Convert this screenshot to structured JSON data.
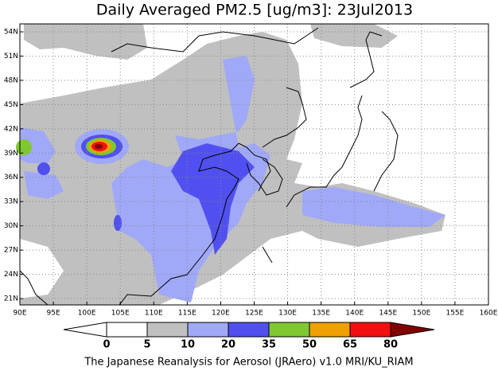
{
  "title": "Daily Averaged PM2.5 [ug/m3]: 23Jul2013",
  "lat_labels": [
    "54N",
    "51N",
    "48N",
    "45N",
    "42N",
    "39N",
    "36N",
    "33N",
    "30N",
    "27N",
    "24N",
    "21N"
  ],
  "lon_labels": [
    "90E",
    "95E",
    "100E",
    "105E",
    "110E",
    "115E",
    "120E",
    "125E",
    "130E",
    "135E",
    "140E",
    "145E",
    "150E",
    "155E",
    "160E"
  ],
  "colorbar": {
    "levels": [
      0,
      5,
      10,
      20,
      35,
      50,
      65,
      80
    ],
    "colors": [
      "#ffffff",
      "#ffffff",
      "#c0c0c0",
      "#a0a8f8",
      "#5050f0",
      "#80c830",
      "#f0a000",
      "#f01010",
      "#800000"
    ]
  },
  "footer": "The Japanese Reanalysis for Aerosol (JRAero) v1.0 MRI/KU_RIAM"
}
